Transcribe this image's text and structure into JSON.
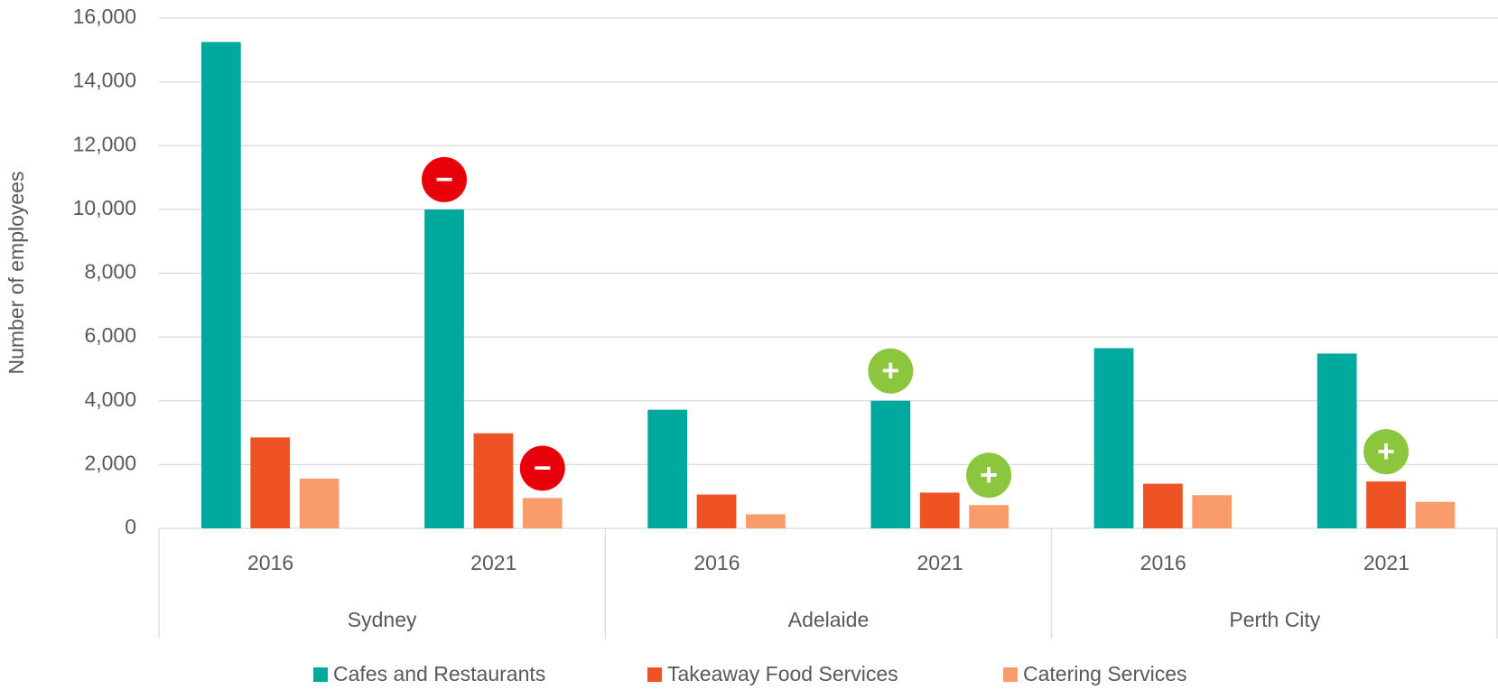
{
  "chart_data": {
    "type": "bar",
    "y_label": "Number of employees",
    "categories": [
      "2016",
      "2021",
      "2016",
      "2021",
      "2016",
      "2021"
    ],
    "groups": [
      "Sydney",
      "Adelaide",
      "Perth City"
    ],
    "series": [
      {
        "name": "Cafes and Restaurants",
        "color": "#00a99d",
        "values": [
          15250,
          10000,
          3720,
          4000,
          5650,
          5480
        ]
      },
      {
        "name": "Takeaway Food Services",
        "color": "#f05323",
        "values": [
          2850,
          2980,
          1060,
          1120,
          1400,
          1470
        ]
      },
      {
        "name": "Catering Services",
        "color": "#f99b6b",
        "values": [
          1560,
          950,
          440,
          730,
          1040,
          830
        ]
      }
    ],
    "annotations": [
      {
        "series": 0,
        "index": 1,
        "label": "−",
        "color": "#e8000b"
      },
      {
        "series": 2,
        "index": 1,
        "label": "−",
        "color": "#e8000b"
      },
      {
        "series": 0,
        "index": 3,
        "label": "+",
        "color": "#8cc63f"
      },
      {
        "series": 2,
        "index": 3,
        "label": "+",
        "color": "#8cc63f"
      },
      {
        "series": 1,
        "index": 5,
        "label": "+",
        "color": "#8cc63f"
      }
    ],
    "ylim": [
      0,
      16000
    ],
    "yticks": [
      0,
      {
        "value": 2000,
        "label": "2,000"
      },
      {
        "value": 4000,
        "label": "4,000"
      },
      {
        "value": 6000,
        "label": "6,000"
      },
      {
        "value": 8000,
        "label": "8,000"
      },
      {
        "value": 10000,
        "label": "10,000"
      },
      {
        "value": 12000,
        "label": "12,000"
      },
      {
        "value": 14000,
        "label": "14,000"
      },
      {
        "value": 16000,
        "label": "16,000"
      }
    ],
    "grid": true,
    "legend": "bottom"
  }
}
